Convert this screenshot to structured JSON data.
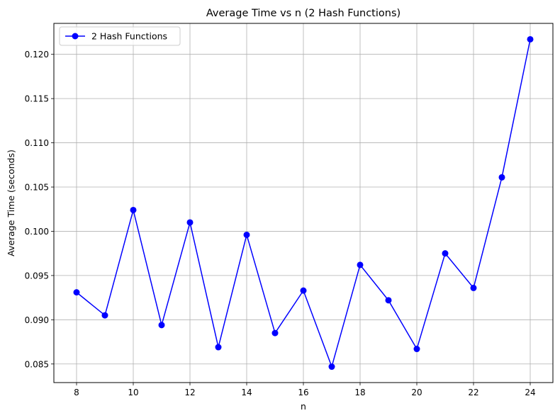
{
  "chart_data": {
    "type": "line",
    "title": "Average Time vs n (2 Hash Functions)",
    "xlabel": "n",
    "ylabel": "Average Time (seconds)",
    "x": [
      8,
      9,
      10,
      11,
      12,
      13,
      14,
      15,
      16,
      17,
      18,
      19,
      20,
      21,
      22,
      23,
      24
    ],
    "series": [
      {
        "name": "2 Hash Functions",
        "color": "#0000ff",
        "marker": "circle",
        "values": [
          0.0931,
          0.0905,
          0.1024,
          0.0894,
          0.101,
          0.0869,
          0.0996,
          0.0885,
          0.0933,
          0.0847,
          0.0962,
          0.0922,
          0.0867,
          0.0975,
          0.0936,
          0.1061,
          0.1217
        ]
      }
    ],
    "xlim": [
      7.2,
      24.8
    ],
    "ylim": [
      0.0829,
      0.1235
    ],
    "xticks": [
      8,
      10,
      12,
      14,
      16,
      18,
      20,
      22,
      24
    ],
    "xtick_labels": [
      "8",
      "10",
      "12",
      "14",
      "16",
      "18",
      "20",
      "22",
      "24"
    ],
    "yticks": [
      0.085,
      0.09,
      0.095,
      0.1,
      0.105,
      0.11,
      0.115,
      0.12
    ],
    "ytick_labels": [
      "0.085",
      "0.090",
      "0.095",
      "0.100",
      "0.105",
      "0.110",
      "0.115",
      "0.120"
    ],
    "grid": true,
    "legend_position": "top-left"
  }
}
